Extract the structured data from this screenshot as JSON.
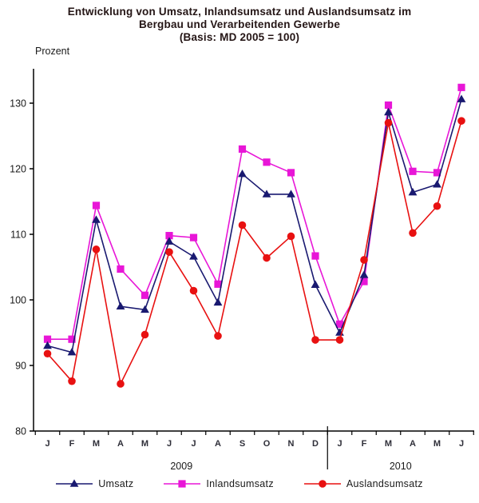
{
  "title": {
    "line1": "Entwicklung von Umsatz, Inlandsumsatz und Auslandsumsatz im",
    "line2": "Bergbau und Verarbeitenden Gewerbe",
    "line3": "(Basis: MD 2005 = 100)"
  },
  "y_axis_label": "Prozent",
  "chart_data": {
    "type": "line",
    "categories": [
      "J",
      "F",
      "M",
      "A",
      "M",
      "J",
      "J",
      "A",
      "S",
      "O",
      "N",
      "D",
      "J",
      "F",
      "M",
      "A",
      "M",
      "J"
    ],
    "year_groups": [
      {
        "label": "2009",
        "months": 12
      },
      {
        "label": "2010",
        "months": 6
      }
    ],
    "yticks": [
      80,
      90,
      100,
      110,
      120,
      130
    ],
    "ylim": [
      80,
      135
    ],
    "grid": false,
    "legend_position": "bottom",
    "axis_color": "#000000",
    "series": [
      {
        "name": "Umsatz",
        "marker": "triangle",
        "color": "#191970",
        "values": [
          93.0,
          92.0,
          112.2,
          99.0,
          98.5,
          108.9,
          106.6,
          99.6,
          119.2,
          116.1,
          116.1,
          102.3,
          95.0,
          103.8,
          128.6,
          116.4,
          117.6,
          130.6
        ]
      },
      {
        "name": "Inlandsumsatz",
        "marker": "square",
        "color": "#e816d7",
        "values": [
          94.0,
          94.0,
          114.4,
          104.7,
          100.7,
          109.8,
          109.5,
          102.4,
          123.0,
          121.0,
          119.4,
          106.7,
          96.3,
          102.8,
          129.7,
          119.6,
          119.4,
          132.4
        ]
      },
      {
        "name": "Auslandsumsatz",
        "marker": "circle",
        "color": "#e81111",
        "values": [
          91.8,
          87.6,
          107.7,
          87.2,
          94.7,
          107.3,
          101.4,
          94.5,
          111.4,
          106.4,
          109.7,
          93.9,
          93.9,
          106.1,
          127.0,
          110.2,
          114.3,
          127.3
        ]
      }
    ]
  }
}
